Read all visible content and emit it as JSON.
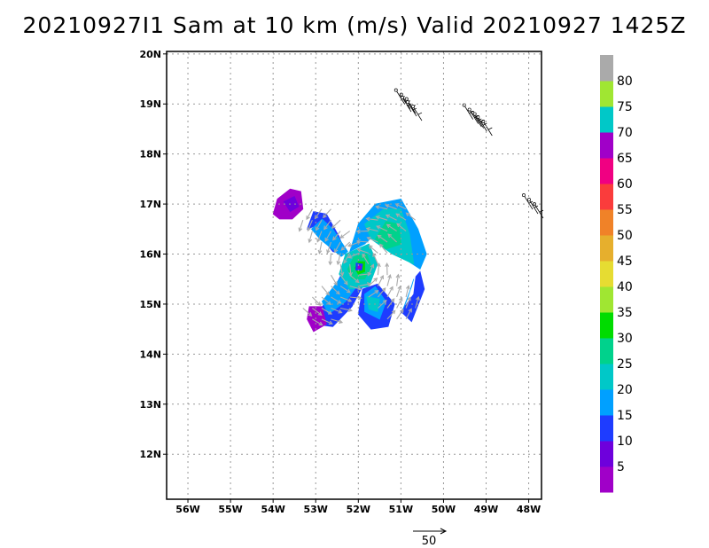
{
  "chart_data": {
    "type": "heatmap",
    "title": "20210927I1 Sam at 10 km (m/s) Valid 20210927 1425Z",
    "x_ticks": [
      "56W",
      "55W",
      "54W",
      "53W",
      "52W",
      "51W",
      "50W",
      "49W",
      "48W"
    ],
    "y_ticks": [
      "12N",
      "13N",
      "14N",
      "15N",
      "16N",
      "17N",
      "18N",
      "19N",
      "20N"
    ],
    "xlim_lon": [
      -56.5,
      -47.7
    ],
    "ylim_lat": [
      11.1,
      20.05
    ],
    "grid": true,
    "colorbar": {
      "position": "right",
      "labels": [
        "5",
        "10",
        "15",
        "20",
        "25",
        "30",
        "35",
        "40",
        "45",
        "50",
        "55",
        "60",
        "65",
        "70",
        "75",
        "80"
      ],
      "bins": [
        0,
        5,
        10,
        15,
        20,
        25,
        30,
        35,
        40,
        45,
        50,
        55,
        60,
        65,
        70,
        75,
        80,
        85
      ],
      "colors": [
        "#a000c8",
        "#6e00dc",
        "#1e3cff",
        "#00a0ff",
        "#00c8c8",
        "#00d28c",
        "#00dc00",
        "#a0e632",
        "#e6dc32",
        "#e6af2d",
        "#f08228",
        "#fa3c3c",
        "#f00082",
        "#a000c8",
        "#00c8c8",
        "#a0e632",
        "#aaaaaa"
      ]
    },
    "vector_reference": {
      "label": "50",
      "speed": 50
    },
    "storm_center": {
      "lon": -51.95,
      "lat": 15.75
    },
    "speed_regions": [
      {
        "name": "northwest-band-outer",
        "speed": 12,
        "polygon": [
          [
            -53.05,
            16.85
          ],
          [
            -52.75,
            16.8
          ],
          [
            -52.45,
            16.35
          ],
          [
            -52.3,
            16.0
          ],
          [
            -52.6,
            16.05
          ],
          [
            -53.05,
            16.55
          ],
          [
            -53.2,
            16.5
          ]
        ]
      },
      {
        "name": "northwest-band",
        "speed": 17,
        "polygon": [
          [
            -52.85,
            16.7
          ],
          [
            -52.6,
            16.5
          ],
          [
            -52.25,
            16.05
          ],
          [
            -52.4,
            15.95
          ],
          [
            -52.9,
            16.3
          ],
          [
            -53.1,
            16.5
          ]
        ]
      },
      {
        "name": "northeast-band-outer",
        "speed": 17,
        "polygon": [
          [
            -51.6,
            17.0
          ],
          [
            -51.0,
            17.1
          ],
          [
            -50.6,
            16.5
          ],
          [
            -50.4,
            16.0
          ],
          [
            -50.55,
            15.7
          ],
          [
            -51.0,
            15.95
          ],
          [
            -51.6,
            16.4
          ],
          [
            -51.85,
            16.2
          ],
          [
            -52.2,
            16.05
          ],
          [
            -52.0,
            16.6
          ]
        ]
      },
      {
        "name": "northeast-band",
        "speed": 22,
        "polygon": [
          [
            -51.4,
            16.9
          ],
          [
            -51.0,
            16.9
          ],
          [
            -50.8,
            16.4
          ],
          [
            -50.7,
            15.8
          ],
          [
            -51.2,
            16.0
          ],
          [
            -51.7,
            16.3
          ],
          [
            -51.85,
            16.6
          ]
        ]
      },
      {
        "name": "northeast-band-inner",
        "speed": 26,
        "polygon": [
          [
            -51.35,
            16.65
          ],
          [
            -51.05,
            16.6
          ],
          [
            -51.0,
            16.2
          ],
          [
            -51.35,
            16.1
          ],
          [
            -51.6,
            16.3
          ]
        ]
      },
      {
        "name": "east-band-outer",
        "speed": 12,
        "polygon": [
          [
            -50.55,
            15.65
          ],
          [
            -50.45,
            15.3
          ],
          [
            -50.75,
            14.65
          ],
          [
            -51.0,
            14.85
          ],
          [
            -50.7,
            15.2
          ],
          [
            -50.65,
            15.55
          ]
        ]
      },
      {
        "name": "east-band",
        "speed": 17,
        "polygon": [
          [
            -50.7,
            15.5
          ],
          [
            -50.85,
            15.1
          ],
          [
            -50.95,
            14.9
          ],
          [
            -50.75,
            15.35
          ]
        ]
      },
      {
        "name": "southwest-band-outer",
        "speed": 12,
        "polygon": [
          [
            -52.3,
            15.75
          ],
          [
            -52.55,
            15.35
          ],
          [
            -52.95,
            14.8
          ],
          [
            -53.05,
            14.6
          ],
          [
            -52.6,
            14.55
          ],
          [
            -52.15,
            14.95
          ],
          [
            -51.9,
            15.35
          ]
        ]
      },
      {
        "name": "southwest-band",
        "speed": 17,
        "polygon": [
          [
            -52.35,
            15.6
          ],
          [
            -52.85,
            15.05
          ],
          [
            -52.7,
            14.8
          ],
          [
            -52.3,
            15.05
          ],
          [
            -52.0,
            15.4
          ]
        ]
      },
      {
        "name": "southeast-band-outer",
        "speed": 12,
        "polygon": [
          [
            -51.9,
            15.3
          ],
          [
            -52.0,
            14.8
          ],
          [
            -51.7,
            14.5
          ],
          [
            -51.3,
            14.55
          ],
          [
            -51.15,
            15.0
          ],
          [
            -51.55,
            15.4
          ]
        ]
      },
      {
        "name": "southeast-band",
        "speed": 17,
        "polygon": [
          [
            -51.85,
            15.2
          ],
          [
            -51.85,
            14.85
          ],
          [
            -51.5,
            14.7
          ],
          [
            -51.35,
            15.05
          ],
          [
            -51.6,
            15.35
          ]
        ]
      },
      {
        "name": "southeast-band-inner",
        "speed": 22,
        "polygon": [
          [
            -51.8,
            15.15
          ],
          [
            -51.75,
            14.9
          ],
          [
            -51.55,
            14.85
          ],
          [
            -51.5,
            15.1
          ]
        ]
      },
      {
        "name": "core-ring",
        "speed": 22,
        "polygon": [
          [
            -52.3,
            16.0
          ],
          [
            -51.75,
            16.2
          ],
          [
            -51.55,
            15.8
          ],
          [
            -51.75,
            15.35
          ],
          [
            -52.2,
            15.3
          ],
          [
            -52.45,
            15.6
          ]
        ]
      },
      {
        "name": "core-inner",
        "speed": 27,
        "polygon": [
          [
            -52.1,
            15.95
          ],
          [
            -51.8,
            16.0
          ],
          [
            -51.7,
            15.75
          ],
          [
            -51.85,
            15.5
          ],
          [
            -52.15,
            15.5
          ],
          [
            -52.25,
            15.7
          ]
        ]
      },
      {
        "name": "core-max",
        "speed": 32,
        "polygon": [
          [
            -52.0,
            15.85
          ],
          [
            -51.85,
            15.85
          ],
          [
            -51.85,
            15.65
          ],
          [
            -52.0,
            15.6
          ],
          [
            -52.08,
            15.72
          ]
        ]
      },
      {
        "name": "eye-wall",
        "speed": 12,
        "polygon": [
          [
            -52.05,
            15.82
          ],
          [
            -51.9,
            15.8
          ],
          [
            -51.92,
            15.68
          ],
          [
            -52.06,
            15.68
          ]
        ]
      },
      {
        "name": "eye",
        "speed": 2,
        "polygon": [
          [
            -52.0,
            15.77
          ],
          [
            -51.94,
            15.76
          ],
          [
            -51.95,
            15.71
          ],
          [
            -52.01,
            15.71
          ]
        ]
      },
      {
        "name": "northwest-patch",
        "speed": 3,
        "polygon": [
          [
            -53.9,
            17.1
          ],
          [
            -53.6,
            17.3
          ],
          [
            -53.35,
            17.25
          ],
          [
            -53.3,
            16.9
          ],
          [
            -53.55,
            16.7
          ],
          [
            -53.85,
            16.7
          ],
          [
            -54.0,
            16.8
          ]
        ]
      },
      {
        "name": "northwest-patch-core",
        "speed": 7,
        "polygon": [
          [
            -53.75,
            17.05
          ],
          [
            -53.5,
            17.15
          ],
          [
            -53.4,
            16.95
          ],
          [
            -53.6,
            16.85
          ]
        ]
      },
      {
        "name": "southwest-patch",
        "speed": 3,
        "polygon": [
          [
            -53.15,
            14.95
          ],
          [
            -52.85,
            14.95
          ],
          [
            -52.75,
            14.6
          ],
          [
            -53.05,
            14.45
          ],
          [
            -53.2,
            14.7
          ]
        ]
      }
    ],
    "gray_vectors": {
      "speed": 85,
      "bounds": {
        "lon": [
          -53.3,
          -50.4
        ],
        "lat": [
          14.7,
          17.0
        ]
      },
      "step": 0.22,
      "max_radius_deg": 1.65
    },
    "outlying_barbs": [
      {
        "lon": -50.95,
        "lat": 19.1
      },
      {
        "lon": -50.8,
        "lat": 18.95
      },
      {
        "lon": -49.15,
        "lat": 18.65
      },
      {
        "lon": -49.35,
        "lat": 18.8
      },
      {
        "lon": -47.95,
        "lat": 17.0
      }
    ]
  }
}
